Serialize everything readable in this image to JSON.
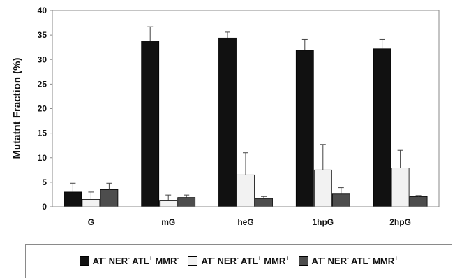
{
  "chart_data": {
    "type": "bar",
    "title": "",
    "xlabel": "",
    "ylabel": "Mutatnt Fraction (%)",
    "ylim": [
      0,
      40
    ],
    "yticks": [
      0,
      5,
      10,
      15,
      20,
      25,
      30,
      35,
      40
    ],
    "categories": [
      "G",
      "mG",
      "heG",
      "1hpG",
      "2hpG"
    ],
    "series": [
      {
        "name": "AT⁻ NER⁻ ATL⁺ MMR⁻",
        "legend_parts": [
          [
            "AT",
            "-"
          ],
          [
            "NER",
            "-"
          ],
          [
            "ATL",
            "+"
          ],
          [
            "MMR",
            "-"
          ]
        ],
        "color": "#111111",
        "values": [
          3.0,
          33.8,
          34.4,
          31.9,
          32.2
        ],
        "errors": [
          1.8,
          2.9,
          1.2,
          2.2,
          1.9
        ]
      },
      {
        "name": "AT⁻ NER⁻ ATL⁺ MMR⁺",
        "legend_parts": [
          [
            "AT",
            "-"
          ],
          [
            "NER",
            "-"
          ],
          [
            "ATL",
            "+"
          ],
          [
            "MMR",
            "+"
          ]
        ],
        "color": "#f2f2f2",
        "values": [
          1.5,
          1.2,
          6.5,
          7.5,
          7.9
        ],
        "errors": [
          1.5,
          1.2,
          4.5,
          5.2,
          3.6
        ]
      },
      {
        "name": "AT⁻ NER⁻ ATL⁻ MMR⁺",
        "legend_parts": [
          [
            "AT",
            "-"
          ],
          [
            "NER",
            "-"
          ],
          [
            "ATL",
            "-"
          ],
          [
            "MMR",
            "+"
          ]
        ],
        "color": "#4d4d4d",
        "values": [
          3.5,
          1.9,
          1.7,
          2.6,
          2.1
        ],
        "errors": [
          1.3,
          0.5,
          0.4,
          1.3,
          0.2
        ]
      }
    ],
    "grid": false,
    "legend": "bottom"
  }
}
